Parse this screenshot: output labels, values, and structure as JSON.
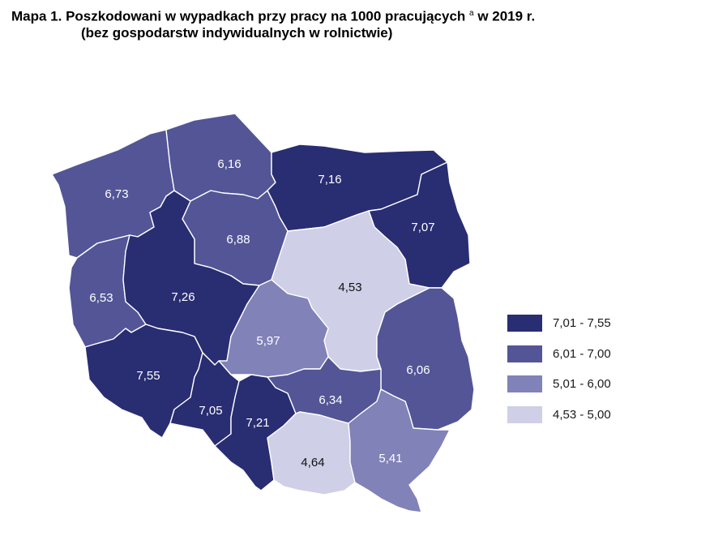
{
  "title": {
    "main": "Mapa 1. Poszkodowani w wypadkach przy pracy na 1000 pracujących",
    "footnote_mark": "a",
    "year": "w 2019 r.",
    "subtitle": "(bez gospodarstw indywidualnych w rolnictwie)"
  },
  "colors": {
    "class_1": "#292d72",
    "class_2": "#535597",
    "class_3": "#8182b8",
    "class_4": "#cfcfe7",
    "label_dark_bg": "#ffffff",
    "label_light_bg": "#111111"
  },
  "legend": [
    {
      "label": "7,01 - 7,55",
      "class": "class_1"
    },
    {
      "label": "6,01 - 7,00",
      "class": "class_2"
    },
    {
      "label": "5,01 - 6,00",
      "class": "class_3"
    },
    {
      "label": "4,53 - 5,00",
      "class": "class_4"
    }
  ],
  "regions": [
    {
      "id": "zachodniopomorskie",
      "value": "6,73",
      "class": "class_2"
    },
    {
      "id": "pomorskie",
      "value": "6,16",
      "class": "class_2"
    },
    {
      "id": "warminsko-mazurskie",
      "value": "7,16",
      "class": "class_1"
    },
    {
      "id": "podlaskie",
      "value": "7,07",
      "class": "class_1"
    },
    {
      "id": "kujawsko-pomorskie",
      "value": "6,88",
      "class": "class_2"
    },
    {
      "id": "lubuskie",
      "value": "6,53",
      "class": "class_2"
    },
    {
      "id": "wielkopolskie",
      "value": "7,26",
      "class": "class_1"
    },
    {
      "id": "mazowieckie",
      "value": "4,53",
      "class": "class_4"
    },
    {
      "id": "lodzkie",
      "value": "5,97",
      "class": "class_3"
    },
    {
      "id": "lubelskie",
      "value": "6,06",
      "class": "class_2"
    },
    {
      "id": "dolnoslaskie",
      "value": "7,55",
      "class": "class_1"
    },
    {
      "id": "opolskie",
      "value": "7,05",
      "class": "class_1"
    },
    {
      "id": "slaskie",
      "value": "7,21",
      "class": "class_1"
    },
    {
      "id": "swietokrzyskie",
      "value": "6,34",
      "class": "class_2"
    },
    {
      "id": "malopolskie",
      "value": "4,64",
      "class": "class_4"
    },
    {
      "id": "podkarpackie",
      "value": "5,41",
      "class": "class_3"
    }
  ]
}
